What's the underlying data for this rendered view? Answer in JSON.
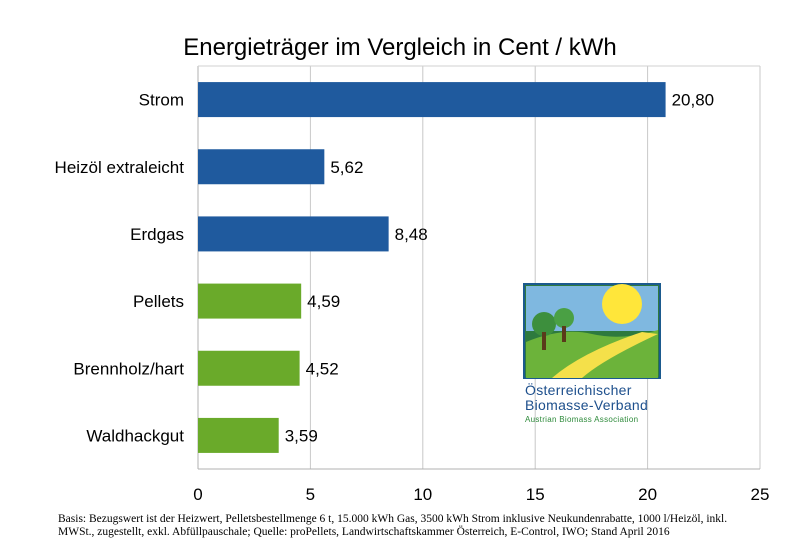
{
  "chart_data": {
    "type": "bar",
    "orientation": "horizontal",
    "title": "Energieträger im Vergleich in Cent / kWh",
    "categories": [
      "Strom",
      "Heizöl extraleicht",
      "Erdgas",
      "Pellets",
      "Brennholz/hart",
      "Waldhackgut"
    ],
    "values": [
      20.8,
      5.62,
      8.48,
      4.59,
      4.52,
      3.59
    ],
    "value_labels": [
      "20,80",
      "5,62",
      "8,48",
      "4,59",
      "4,52",
      "3,59"
    ],
    "bar_colors": [
      "#1f5a9e",
      "#1f5a9e",
      "#1f5a9e",
      "#6aaa2a",
      "#6aaa2a",
      "#6aaa2a"
    ],
    "xlim": [
      0,
      25
    ],
    "xticks": [
      0,
      5,
      10,
      15,
      20,
      25
    ],
    "xlabel": "",
    "ylabel": "",
    "grid": "vertical",
    "legend": "none"
  },
  "logo": {
    "line1": "Österreichischer",
    "line2": "Biomasse-Verband",
    "line3": "Austrian Biomass Association"
  },
  "footnote": "Basis: Bezugswert ist der Heizwert, Pelletsbestellmenge 6 t, 15.000 kWh Gas, 3500 kWh Strom inklusive Neukundenrabatte, 1000 l/Heizöl, inkl. MWSt., zugestellt, exkl. Abfüllpauschale; Quelle: proPellets, Landwirtschaftskammer Österreich, E-Control, IWO; Stand April 2016"
}
